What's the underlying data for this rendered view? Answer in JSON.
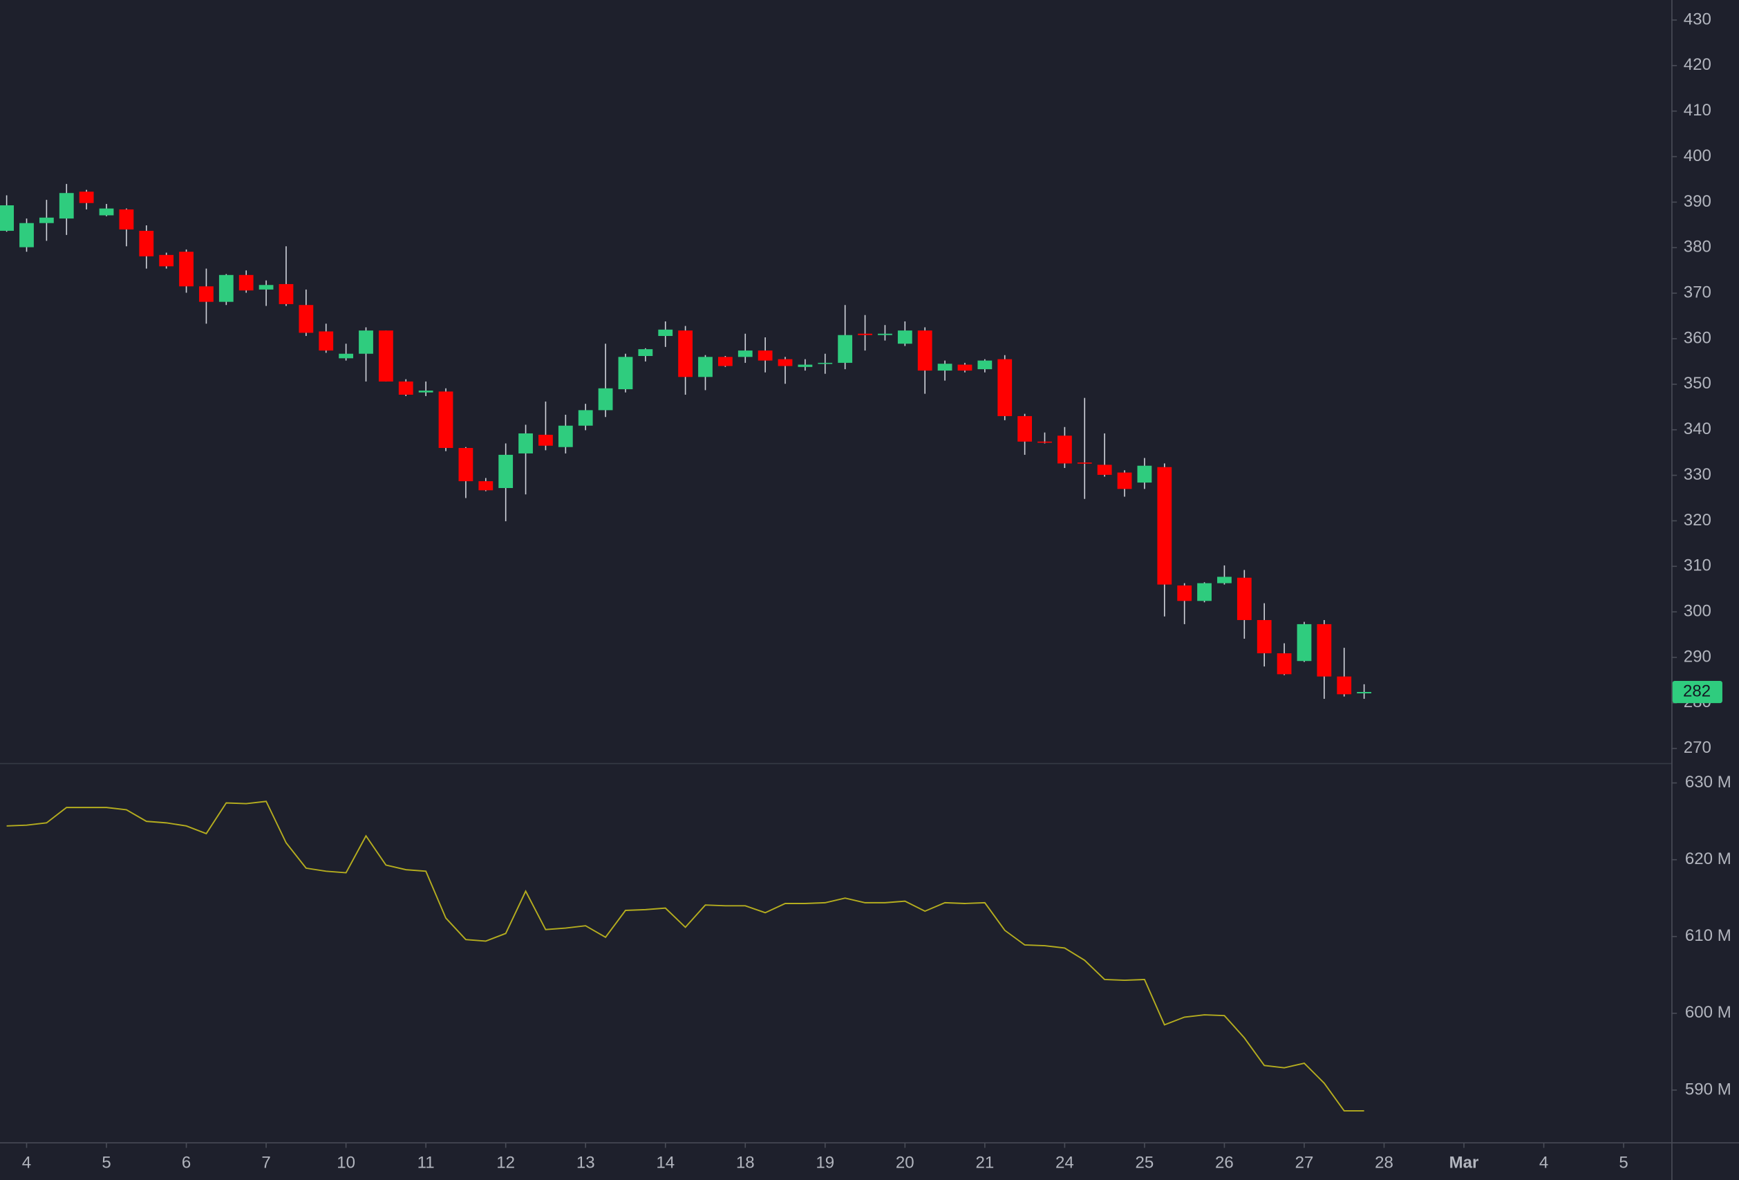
{
  "chart_data": {
    "type": "candlestick",
    "categories": [
      null,
      null,
      null,
      null,
      null,
      null,
      null,
      null,
      null,
      null,
      null,
      null,
      null,
      null,
      null,
      null,
      null,
      null,
      null,
      null,
      null,
      null,
      null,
      null,
      null,
      null,
      null,
      null,
      null,
      null,
      null,
      null,
      null,
      null,
      null,
      null,
      null,
      null,
      null,
      null,
      null,
      null,
      null,
      null,
      null,
      null,
      null,
      null,
      null,
      null,
      null,
      null,
      null,
      null,
      null,
      null,
      null,
      null,
      null,
      null,
      null,
      null,
      null,
      null,
      null,
      null,
      null,
      null,
      null
    ],
    "open": [
      383.7,
      380.1,
      385.4,
      386.4,
      392.3,
      387.1,
      388.4,
      383.7,
      378.4,
      379.1,
      371.5,
      368.1,
      374.0,
      370.8,
      372.0,
      367.4,
      361.6,
      355.7,
      356.7,
      361.8,
      350.6,
      348.2,
      348.4,
      336.0,
      328.7,
      327.2,
      334.8,
      338.9,
      336.2,
      340.9,
      344.3,
      348.9,
      356.2,
      360.6,
      361.8,
      351.6,
      356.0,
      356.0,
      357.4,
      355.5,
      353.8,
      354.5,
      354.7,
      361.1,
      360.8,
      358.9,
      361.8,
      353.0,
      354.3,
      353.3,
      355.5,
      343.0,
      337.4,
      338.7,
      332.8,
      332.3,
      330.6,
      328.4,
      331.8,
      305.8,
      302.4,
      306.3,
      307.5,
      298.2,
      290.9,
      289.2,
      297.3,
      285.8,
      282.1
    ],
    "high": [
      391.5,
      386.4,
      390.5,
      394.0,
      392.7,
      389.6,
      388.6,
      384.9,
      378.9,
      379.6,
      375.4,
      374.2,
      375.0,
      372.8,
      380.3,
      370.8,
      363.3,
      358.9,
      362.5,
      361.8,
      351.1,
      350.6,
      349.1,
      336.2,
      329.4,
      337.0,
      341.1,
      346.2,
      343.3,
      345.7,
      358.9,
      356.7,
      357.9,
      363.8,
      362.8,
      356.4,
      356.2,
      361.1,
      360.3,
      356.0,
      355.5,
      356.7,
      367.4,
      365.2,
      363.0,
      363.8,
      362.5,
      355.2,
      354.7,
      355.5,
      356.4,
      343.5,
      339.4,
      340.6,
      347.0,
      339.2,
      331.1,
      333.8,
      332.6,
      306.3,
      306.5,
      310.2,
      309.2,
      301.9,
      293.1,
      297.8,
      298.2,
      292.1,
      284.1
    ],
    "low": [
      383.5,
      379.1,
      381.5,
      382.8,
      388.4,
      386.9,
      380.3,
      375.4,
      375.4,
      370.1,
      363.3,
      367.4,
      370.1,
      367.2,
      367.2,
      360.6,
      356.9,
      355.2,
      350.6,
      350.6,
      347.4,
      347.4,
      335.3,
      325.0,
      326.5,
      319.9,
      325.8,
      335.5,
      334.8,
      339.9,
      342.8,
      348.2,
      355.0,
      358.2,
      347.7,
      348.7,
      353.8,
      354.7,
      352.6,
      350.1,
      353.0,
      352.3,
      353.3,
      357.4,
      359.6,
      358.4,
      347.9,
      350.8,
      352.6,
      352.6,
      342.1,
      334.5,
      337.0,
      331.6,
      324.8,
      329.7,
      325.3,
      327.0,
      299.0,
      297.3,
      302.1,
      306.0,
      294.1,
      288.0,
      286.1,
      289.0,
      280.9,
      281.4,
      280.9
    ],
    "close": [
      389.3,
      385.4,
      386.6,
      392.0,
      389.8,
      388.6,
      384.0,
      378.1,
      375.9,
      371.5,
      368.1,
      374.0,
      370.6,
      371.8,
      367.6,
      361.3,
      357.4,
      356.7,
      361.8,
      350.6,
      347.7,
      348.6,
      336.0,
      328.7,
      326.7,
      334.5,
      339.2,
      336.5,
      340.9,
      344.3,
      349.1,
      356.0,
      357.7,
      362.0,
      351.6,
      356.0,
      354.0,
      357.4,
      355.2,
      354.0,
      354.3,
      354.7,
      360.8,
      360.8,
      361.1,
      361.8,
      353.0,
      354.5,
      353.0,
      355.2,
      343.0,
      337.4,
      337.2,
      332.6,
      332.6,
      330.1,
      327.0,
      332.1,
      306.0,
      302.4,
      306.3,
      307.7,
      298.2,
      290.9,
      286.3,
      297.3,
      285.8,
      281.9,
      282.4
    ],
    "up_color": "#2fcc7e",
    "down_color": "#ff0000",
    "wick_color": "#d1d4dc",
    "ylim": [
      266.8,
      434.4
    ],
    "yticks": [
      270,
      280,
      290,
      300,
      310,
      320,
      330,
      340,
      350,
      360,
      370,
      380,
      390,
      400,
      410,
      420,
      430
    ],
    "last_label": "282",
    "xlim": [
      -0.333,
      83.39
    ],
    "xticks": [
      {
        "value": 1,
        "label": "4"
      },
      {
        "value": 5,
        "label": "5"
      },
      {
        "value": 9,
        "label": "6"
      },
      {
        "value": 13,
        "label": "7"
      },
      {
        "value": 17,
        "label": "10"
      },
      {
        "value": 21,
        "label": "11"
      },
      {
        "value": 25,
        "label": "12"
      },
      {
        "value": 29,
        "label": "13"
      },
      {
        "value": 33,
        "label": "14"
      },
      {
        "value": 37,
        "label": "18"
      },
      {
        "value": 41,
        "label": "19"
      },
      {
        "value": 45,
        "label": "20"
      },
      {
        "value": 49,
        "label": "21"
      },
      {
        "value": 53,
        "label": "24"
      },
      {
        "value": 57,
        "label": "25"
      },
      {
        "value": 61,
        "label": "26"
      },
      {
        "value": 65,
        "label": "27"
      },
      {
        "value": 69,
        "label": "28"
      },
      {
        "value": 73,
        "label": "Mar"
      },
      {
        "value": 77,
        "label": "4"
      },
      {
        "value": 81,
        "label": "5"
      }
    ],
    "indicator": {
      "type": "line",
      "color": "#b5ad1f",
      "values": [
        624.4,
        624.5,
        624.8,
        626.8,
        626.8,
        626.8,
        626.5,
        625.0,
        624.8,
        624.4,
        623.4,
        627.4,
        627.3,
        627.6,
        622.2,
        618.9,
        618.5,
        618.3,
        623.1,
        619.3,
        618.7,
        618.5,
        612.4,
        609.6,
        609.4,
        610.4,
        615.9,
        610.9,
        611.1,
        611.4,
        609.9,
        613.4,
        613.5,
        613.7,
        611.2,
        614.1,
        614.0,
        614.0,
        613.1,
        614.3,
        614.3,
        614.4,
        615.0,
        614.4,
        614.4,
        614.6,
        613.3,
        614.4,
        614.3,
        614.4,
        610.8,
        608.9,
        608.8,
        608.5,
        606.9,
        604.4,
        604.3,
        604.4,
        598.5,
        599.5,
        599.8,
        599.7,
        596.8,
        593.2,
        592.9,
        593.5,
        590.9,
        587.3,
        587.3
      ],
      "ylim": [
        583.2,
        632.45
      ],
      "yticks": [
        {
          "value": 590,
          "label": "590 M"
        },
        {
          "value": 600,
          "label": "600 M"
        },
        {
          "value": 610,
          "label": "610 M"
        },
        {
          "value": 620,
          "label": "620 M"
        },
        {
          "value": 630,
          "label": "630 M"
        }
      ]
    }
  }
}
